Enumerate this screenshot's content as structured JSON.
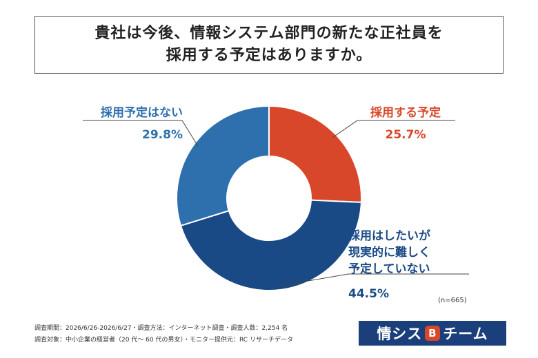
{
  "title": {
    "line1": "貴社は今後、情報システム部門の新たな正社員を",
    "line2": "採用する予定はありますか。"
  },
  "chart_data": {
    "type": "pie",
    "donut": true,
    "categories": [
      "採用する予定",
      "採用はしたいが現実的に難しく予定していない",
      "採用予定はない"
    ],
    "label_lines": [
      [
        "採用する予定"
      ],
      [
        "採用はしたいが",
        "現実的に難しく",
        "予定していない"
      ],
      [
        "採用予定はない"
      ]
    ],
    "values": [
      25.7,
      44.5,
      29.8
    ],
    "value_labels": [
      "25.7%",
      "44.5%",
      "29.8%"
    ],
    "colors": [
      "#d9472b",
      "#1a4a86",
      "#2e6fad"
    ],
    "label_colors": [
      "#d9472b",
      "#1a4a86",
      "#2e6fad"
    ],
    "sample_size": "(n=665)"
  },
  "footer": {
    "line1": "調査期間：2026/6/26-2026/6/27・調査方法：インターネット調査・調査人数：2,254 名",
    "line2": "調査対象：中小企業の経営者（20 代～ 60 代の男女）・モニター提供元：RC リサーチデータ"
  },
  "logo": {
    "text_left": "情シス",
    "badge": "B",
    "text_right": "チーム"
  }
}
